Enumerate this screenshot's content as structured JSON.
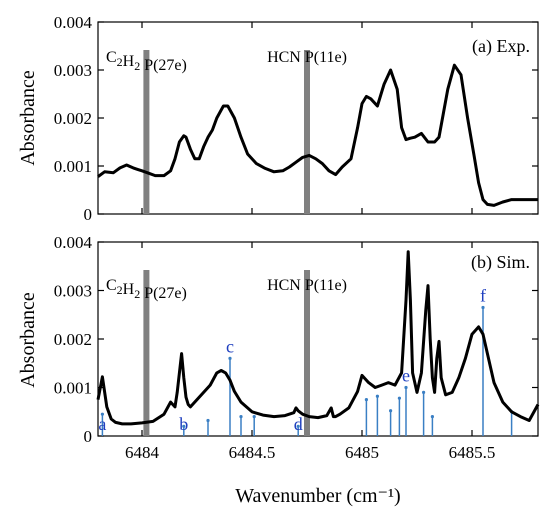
{
  "chart_data": [
    {
      "type": "line",
      "panel_label": "(a) Exp.",
      "ylabel": "Absorbance",
      "xlabel": "",
      "xlim": [
        6483.8,
        6485.8
      ],
      "ylim": [
        0,
        0.004
      ],
      "yticks": [
        "0",
        "0.001",
        "0.002",
        "0.003",
        "0.004"
      ],
      "xticks": [],
      "grid": false,
      "markers": [
        {
          "label": "C2H2 P(27e)",
          "x": 6484.02
        },
        {
          "label": "HCN P(11e)",
          "x": 6484.75
        }
      ],
      "series": [
        {
          "x": [
            6483.8,
            6483.83,
            6483.87,
            6483.9,
            6483.93,
            6483.96,
            6483.98,
            6484.0,
            6484.03,
            6484.06,
            6484.1,
            6484.13,
            6484.15,
            6484.17,
            6484.19,
            6484.2,
            6484.22,
            6484.24,
            6484.26,
            6484.28,
            6484.3,
            6484.32,
            6484.34,
            6484.37,
            6484.39,
            6484.42,
            6484.45,
            6484.48,
            6484.52,
            6484.56,
            6484.6,
            6484.64,
            6484.67,
            6484.7,
            6484.73,
            6484.76,
            6484.79,
            6484.82,
            6484.85,
            6484.88,
            6484.91,
            6484.95,
            6484.98,
            6485.0,
            6485.02,
            6485.04,
            6485.07,
            6485.1,
            6485.13,
            6485.16,
            6485.18,
            6485.2,
            6485.22,
            6485.24,
            6485.27,
            6485.3,
            6485.33,
            6485.35,
            6485.37,
            6485.39,
            6485.42,
            6485.45,
            6485.48,
            6485.51,
            6485.53,
            6485.55,
            6485.57,
            6485.6,
            6485.64,
            6485.68,
            6485.72,
            6485.76,
            6485.8
          ],
          "y": [
            0.00078,
            0.00088,
            0.00086,
            0.00096,
            0.00102,
            0.00096,
            0.00093,
            0.0009,
            0.00085,
            0.0008,
            0.0008,
            0.0009,
            0.00115,
            0.0015,
            0.00163,
            0.0016,
            0.00135,
            0.00115,
            0.00115,
            0.0014,
            0.0016,
            0.00175,
            0.002,
            0.00225,
            0.00225,
            0.002,
            0.0016,
            0.00125,
            0.00105,
            0.00095,
            0.00088,
            0.0009,
            0.00098,
            0.00108,
            0.00118,
            0.00122,
            0.00115,
            0.00105,
            0.0009,
            0.00082,
            0.00098,
            0.00115,
            0.0018,
            0.0023,
            0.00245,
            0.0024,
            0.00225,
            0.0027,
            0.003,
            0.0026,
            0.0018,
            0.00155,
            0.00158,
            0.0016,
            0.00168,
            0.0015,
            0.0015,
            0.0016,
            0.0021,
            0.0026,
            0.0031,
            0.0029,
            0.002,
            0.0012,
            0.00065,
            0.0003,
            0.0002,
            0.00018,
            0.00025,
            0.0003,
            0.0003,
            0.0003,
            0.0003
          ]
        }
      ]
    },
    {
      "type": "line",
      "panel_label": "(b) Sim.",
      "ylabel": "Absorbance",
      "xlabel": "Wavenumber (cm⁻¹)",
      "xlim": [
        6483.8,
        6485.8
      ],
      "ylim": [
        0,
        0.004
      ],
      "yticks": [
        "0",
        "0.001",
        "0.002",
        "0.003",
        "0.004"
      ],
      "xticks": [
        "6484",
        "6484.5",
        "6485",
        "6485.5"
      ],
      "xtick_values": [
        6484,
        6484.5,
        6485,
        6485.5
      ],
      "grid": false,
      "markers": [
        {
          "label": "C2H2 P(27e)",
          "x": 6484.02
        },
        {
          "label": "HCN P(11e)",
          "x": 6484.75
        }
      ],
      "series": [
        {
          "x": [
            6483.8,
            6483.82,
            6483.84,
            6483.86,
            6483.88,
            6483.91,
            6483.95,
            6484.0,
            6484.05,
            6484.1,
            6484.13,
            6484.15,
            6484.16,
            6484.17,
            6484.18,
            6484.19,
            6484.2,
            6484.21,
            6484.22,
            6484.25,
            6484.28,
            6484.31,
            6484.34,
            6484.36,
            6484.38,
            6484.4,
            6484.42,
            6484.45,
            6484.5,
            6484.55,
            6484.6,
            6484.65,
            6484.69,
            6484.7,
            6484.71,
            6484.73,
            6484.76,
            6484.8,
            6484.84,
            6484.86,
            6484.87,
            6484.88,
            6484.9,
            6484.94,
            6484.98,
            6485.0,
            6485.03,
            6485.06,
            6485.09,
            6485.12,
            6485.15,
            6485.18,
            6485.2,
            6485.21,
            6485.22,
            6485.23,
            6485.25,
            6485.27,
            6485.29,
            6485.3,
            6485.31,
            6485.32,
            6485.33,
            6485.34,
            6485.35,
            6485.36,
            6485.38,
            6485.41,
            6485.44,
            6485.47,
            6485.5,
            6485.53,
            6485.55,
            6485.57,
            6485.6,
            6485.64,
            6485.68,
            6485.72,
            6485.76,
            6485.8
          ],
          "y": [
            0.00075,
            0.00122,
            0.0006,
            0.00035,
            0.00028,
            0.00025,
            0.00025,
            0.00027,
            0.0003,
            0.00045,
            0.0007,
            0.0006,
            0.0009,
            0.0013,
            0.0017,
            0.0012,
            0.0008,
            0.00065,
            0.0006,
            0.00075,
            0.0009,
            0.00105,
            0.0013,
            0.00135,
            0.0013,
            0.00115,
            0.00092,
            0.0007,
            0.0005,
            0.00043,
            0.0004,
            0.00042,
            0.00048,
            0.00058,
            0.00052,
            0.00045,
            0.0004,
            0.00038,
            0.00042,
            0.00058,
            0.0004,
            0.0004,
            0.00045,
            0.00058,
            0.00092,
            0.00125,
            0.0011,
            0.001,
            0.00105,
            0.0011,
            0.00105,
            0.0013,
            0.0028,
            0.0038,
            0.0028,
            0.0013,
            0.0009,
            0.0013,
            0.0026,
            0.0031,
            0.002,
            0.0012,
            0.0009,
            0.0016,
            0.00195,
            0.0012,
            0.00085,
            0.0009,
            0.0012,
            0.0016,
            0.0021,
            0.00225,
            0.0021,
            0.0017,
            0.0011,
            0.0007,
            0.0005,
            0.0004,
            0.00032,
            0.00065
          ]
        }
      ],
      "sticks": [
        {
          "x": 6483.82,
          "y": 0.00045
        },
        {
          "x": 6484.19,
          "y": 0.0002
        },
        {
          "x": 6484.3,
          "y": 0.00032
        },
        {
          "x": 6484.4,
          "y": 0.0016
        },
        {
          "x": 6484.45,
          "y": 0.0004
        },
        {
          "x": 6484.51,
          "y": 0.0004
        },
        {
          "x": 6484.71,
          "y": 0.0002
        },
        {
          "x": 6485.02,
          "y": 0.00075
        },
        {
          "x": 6485.07,
          "y": 0.00082
        },
        {
          "x": 6485.13,
          "y": 0.00052
        },
        {
          "x": 6485.17,
          "y": 0.00078
        },
        {
          "x": 6485.2,
          "y": 0.001
        },
        {
          "x": 6485.28,
          "y": 0.0009
        },
        {
          "x": 6485.32,
          "y": 0.0004
        },
        {
          "x": 6485.55,
          "y": 0.00265
        },
        {
          "x": 6485.68,
          "y": 0.0005
        }
      ],
      "annotations": [
        {
          "text": "a",
          "x": 6483.82,
          "y": 0.00045
        },
        {
          "text": "b",
          "x": 6484.19,
          "y": 0.0002
        },
        {
          "text": "c",
          "x": 6484.4,
          "y": 0.0016
        },
        {
          "text": "d",
          "x": 6484.71,
          "y": 0.0002
        },
        {
          "text": "e",
          "x": 6485.2,
          "y": 0.001
        },
        {
          "text": "f",
          "x": 6485.55,
          "y": 0.00265
        }
      ]
    }
  ]
}
